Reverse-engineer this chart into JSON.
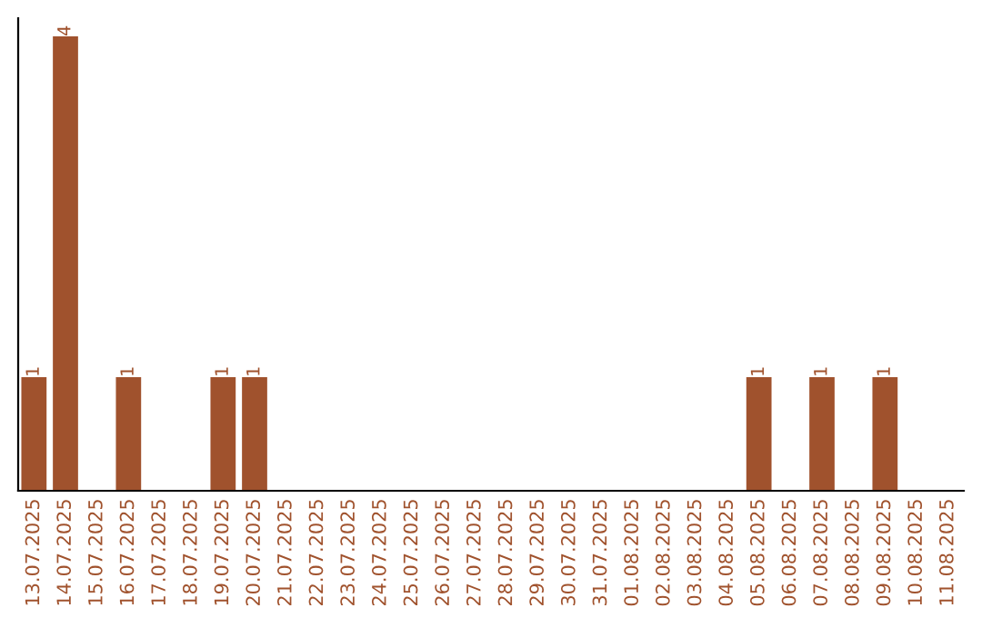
{
  "chart_data": {
    "type": "bar",
    "categories": [
      "13.07.2025",
      "14.07.2025",
      "15.07.2025",
      "16.07.2025",
      "17.07.2025",
      "18.07.2025",
      "19.07.2025",
      "20.07.2025",
      "21.07.2025",
      "22.07.2025",
      "23.07.2025",
      "24.07.2025",
      "25.07.2025",
      "26.07.2025",
      "27.07.2025",
      "28.07.2025",
      "29.07.2025",
      "30.07.2025",
      "31.07.2025",
      "01.08.2025",
      "02.08.2025",
      "03.08.2025",
      "04.08.2025",
      "05.08.2025",
      "06.08.2025",
      "07.08.2025",
      "08.08.2025",
      "09.08.2025",
      "10.08.2025",
      "11.08.2025"
    ],
    "values": [
      1,
      4,
      0,
      1,
      0,
      0,
      1,
      1,
      0,
      0,
      0,
      0,
      0,
      0,
      0,
      0,
      0,
      0,
      0,
      0,
      0,
      0,
      0,
      1,
      0,
      1,
      0,
      1,
      0,
      0
    ],
    "value_labels": [
      "1",
      "4",
      null,
      "1",
      null,
      null,
      "1",
      "1",
      null,
      null,
      null,
      null,
      null,
      null,
      null,
      null,
      null,
      null,
      null,
      null,
      null,
      null,
      null,
      "1",
      null,
      "1",
      null,
      "1",
      null,
      null
    ],
    "color": "#a0522d",
    "tick_labels": "x",
    "grid": false,
    "legend": false
  }
}
